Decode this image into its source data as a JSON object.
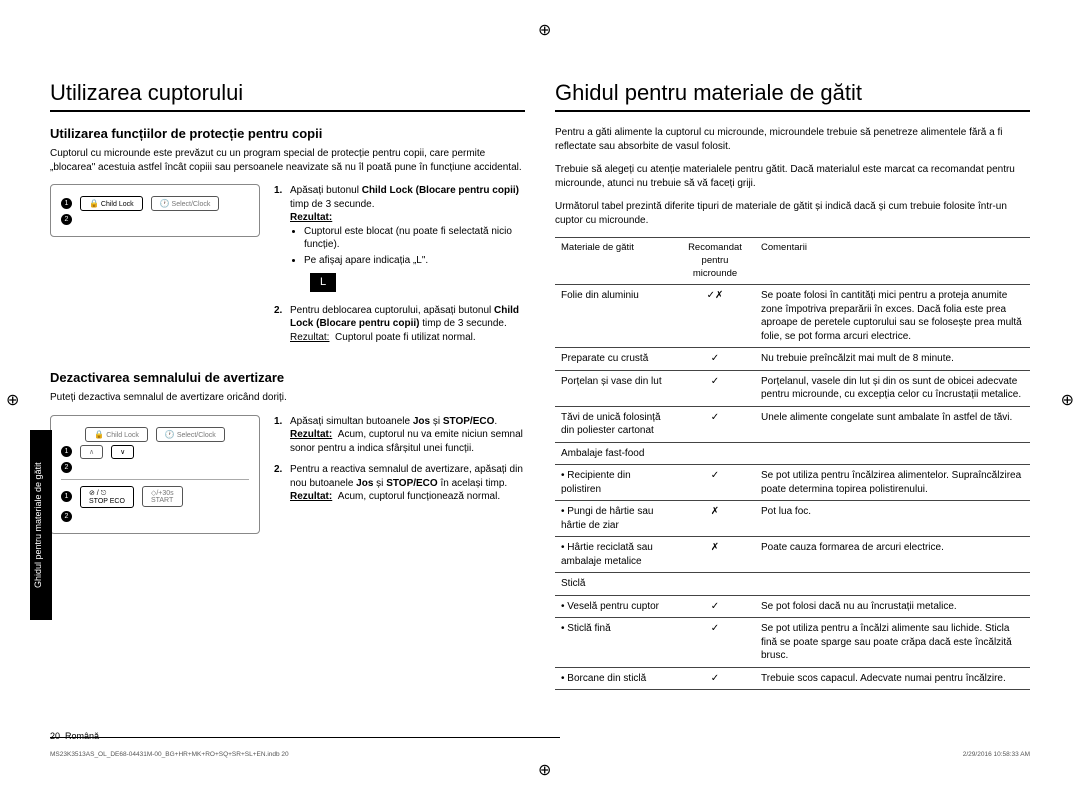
{
  "sideTab": "Ghidul pentru materiale de gătit",
  "left": {
    "title": "Utilizarea cuptorului",
    "sec1": {
      "heading": "Utilizarea funcțiilor de protecție pentru copii",
      "intro": "Cuptorul cu microunde este prevăzut cu un program special de protecție pentru copii, care permite „blocarea\" acestuia astfel încât copiii sau persoanele neavizate să nu îl poată pune în funcțiune accidental.",
      "panel": {
        "childLock": "Child Lock",
        "selectClock": "Select/Clock"
      },
      "steps": {
        "s1a": "Apăsați butonul ",
        "s1b": "Child Lock (Blocare pentru copii)",
        "s1c": " timp de 3 secunde.",
        "resLabel": "Rezultat:",
        "r1a": "Cuptorul este blocat (nu poate fi selectată nicio funcție).",
        "r1b": "Pe afișaj apare indicația „L\".",
        "displayL": "L",
        "s2a": "Pentru deblocarea cuptorului, apăsați butonul ",
        "s2b": "Child Lock (Blocare pentru copii)",
        "s2c": " timp de 3 secunde.",
        "r2": "Cuptorul poate fi utilizat normal."
      }
    },
    "sec2": {
      "heading": "Dezactivarea semnalului de avertizare",
      "intro": "Puteți dezactiva semnalul de avertizare oricând doriți.",
      "panel": {
        "childLock": "Child Lock",
        "selectClock": "Select/Clock",
        "stop": "STOP",
        "eco": "ECO",
        "start": "START",
        "plus30": "+30s"
      },
      "steps": {
        "s1a": "Apăsați simultan butoanele ",
        "jos": "Jos",
        "si": " și ",
        "stopeco": "STOP/ECO",
        "s1b": ".",
        "resLabel": "Rezultat:",
        "r1": "Acum, cuptorul nu va emite niciun semnal sonor pentru a indica sfârșitul unei funcții.",
        "s2a": "Pentru a reactiva semnalul de avertizare, apăsați din nou butoanele ",
        "s2b": " în același timp.",
        "r2": "Acum, cuptorul funcționează normal."
      }
    }
  },
  "right": {
    "title": "Ghidul pentru materiale de gătit",
    "p1": "Pentru a găti alimente la cuptorul cu microunde, microundele trebuie să penetreze alimentele fără a fi reflectate sau absorbite de vasul folosit.",
    "p2": "Trebuie să alegeți cu atenție materialele pentru gătit. Dacă materialul este marcat ca recomandat pentru microunde, atunci nu trebuie să vă faceți griji.",
    "p3": "Următorul tabel prezintă diferite tipuri de materiale de gătit și indică dacă și cum trebuie folosite într-un cuptor cu microunde.",
    "table": {
      "h1": "Materiale de gătit",
      "h2": "Recomandat pentru microunde",
      "h3": "Comentarii",
      "rows": [
        {
          "m": "Folie din aluminiu",
          "r": "✓✗",
          "c": "Se poate folosi în cantități mici pentru a proteja anumite zone împotriva preparării în exces. Dacă folia este prea aproape de peretele cuptorului sau se folosește prea multă folie, se pot forma arcuri electrice."
        },
        {
          "m": "Preparate cu crustă",
          "r": "✓",
          "c": "Nu trebuie preîncălzit mai mult de 8 minute."
        },
        {
          "m": "Porțelan și vase din lut",
          "r": "✓",
          "c": "Porțelanul, vasele din lut și din os sunt de obicei adecvate pentru microunde, cu excepția celor cu încrustații metalice."
        },
        {
          "m": "Tăvi de unică folosință din poliester cartonat",
          "r": "✓",
          "c": "Unele alimente congelate sunt ambalate în astfel de tăvi."
        },
        {
          "m": "Ambalaje fast-food",
          "r": "",
          "c": ""
        },
        {
          "m": "• Recipiente din polistiren",
          "r": "✓",
          "c": "Se pot utiliza pentru încălzirea alimentelor. Supraîncălzirea poate determina topirea polistirenului."
        },
        {
          "m": "• Pungi de hârtie sau hârtie de ziar",
          "r": "✗",
          "c": "Pot lua foc."
        },
        {
          "m": "• Hârtie reciclată sau ambalaje metalice",
          "r": "✗",
          "c": "Poate cauza formarea de arcuri electrice."
        },
        {
          "m": "Sticlă",
          "r": "",
          "c": ""
        },
        {
          "m": "• Veselă pentru cuptor",
          "r": "✓",
          "c": "Se pot folosi dacă nu au încrustații metalice."
        },
        {
          "m": "• Sticlă fină",
          "r": "✓",
          "c": "Se pot utiliza pentru a încălzi alimente sau lichide. Sticla fină se poate sparge sau poate crăpa dacă este încălzită brusc."
        },
        {
          "m": "• Borcane din sticlă",
          "r": "✓",
          "c": "Trebuie scos capacul. Adecvate numai pentru încălzire."
        }
      ]
    }
  },
  "footer": {
    "page": "20",
    "lang": "Română",
    "file": "MS23K3513AS_OL_DE68-04431M-00_BG+HR+MK+RO+SQ+SR+SL+EN.indb   20",
    "date": "2/29/2016   10:58:33 AM"
  }
}
